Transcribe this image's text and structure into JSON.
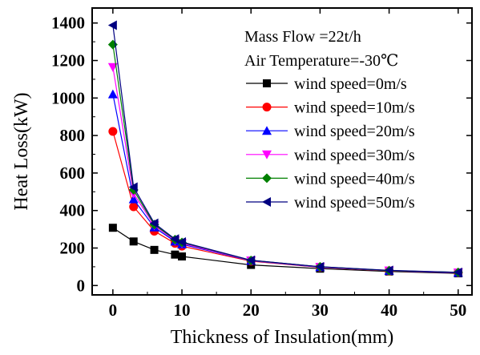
{
  "chart_data": {
    "type": "line",
    "xlabel": "Thickness of Insulation(mm)",
    "ylabel": "Heat Loss(kW)",
    "xlim": [
      -3,
      52
    ],
    "ylim": [
      -50,
      1480
    ],
    "xticks": [
      0,
      10,
      20,
      30,
      40,
      50
    ],
    "yticks": [
      0,
      200,
      400,
      600,
      800,
      1000,
      1200,
      1400
    ],
    "grid": false,
    "legend_position": "top-right",
    "annotations": [
      "Mass Flow =22t/h",
      "Air Temperature=-30℃"
    ],
    "x": [
      0,
      3,
      6,
      9,
      10,
      20,
      30,
      40,
      50
    ],
    "series": [
      {
        "name": "wind speed=0m/s",
        "color": "#000000",
        "marker": "square",
        "values": [
          308,
          235,
          190,
          165,
          155,
          110,
          90,
          75,
          65
        ]
      },
      {
        "name": "wind speed=10m/s",
        "color": "#ff0000",
        "marker": "circle",
        "values": [
          822,
          420,
          290,
          225,
          210,
          130,
          97,
          78,
          68
        ]
      },
      {
        "name": "wind speed=20m/s",
        "color": "#0000ff",
        "marker": "triangle-up",
        "values": [
          1020,
          460,
          310,
          235,
          220,
          132,
          98,
          79,
          68
        ]
      },
      {
        "name": "wind speed=30m/s",
        "color": "#ff00ff",
        "marker": "triangle-down",
        "values": [
          1165,
          490,
          320,
          240,
          225,
          133,
          99,
          80,
          69
        ]
      },
      {
        "name": "wind speed=40m/s",
        "color": "#008000",
        "marker": "diamond",
        "values": [
          1285,
          510,
          325,
          245,
          230,
          134,
          100,
          80,
          70
        ]
      },
      {
        "name": "wind speed=50m/s",
        "color": "#000080",
        "marker": "triangle-left",
        "values": [
          1388,
          525,
          332,
          248,
          232,
          135,
          100,
          81,
          70
        ]
      }
    ]
  }
}
